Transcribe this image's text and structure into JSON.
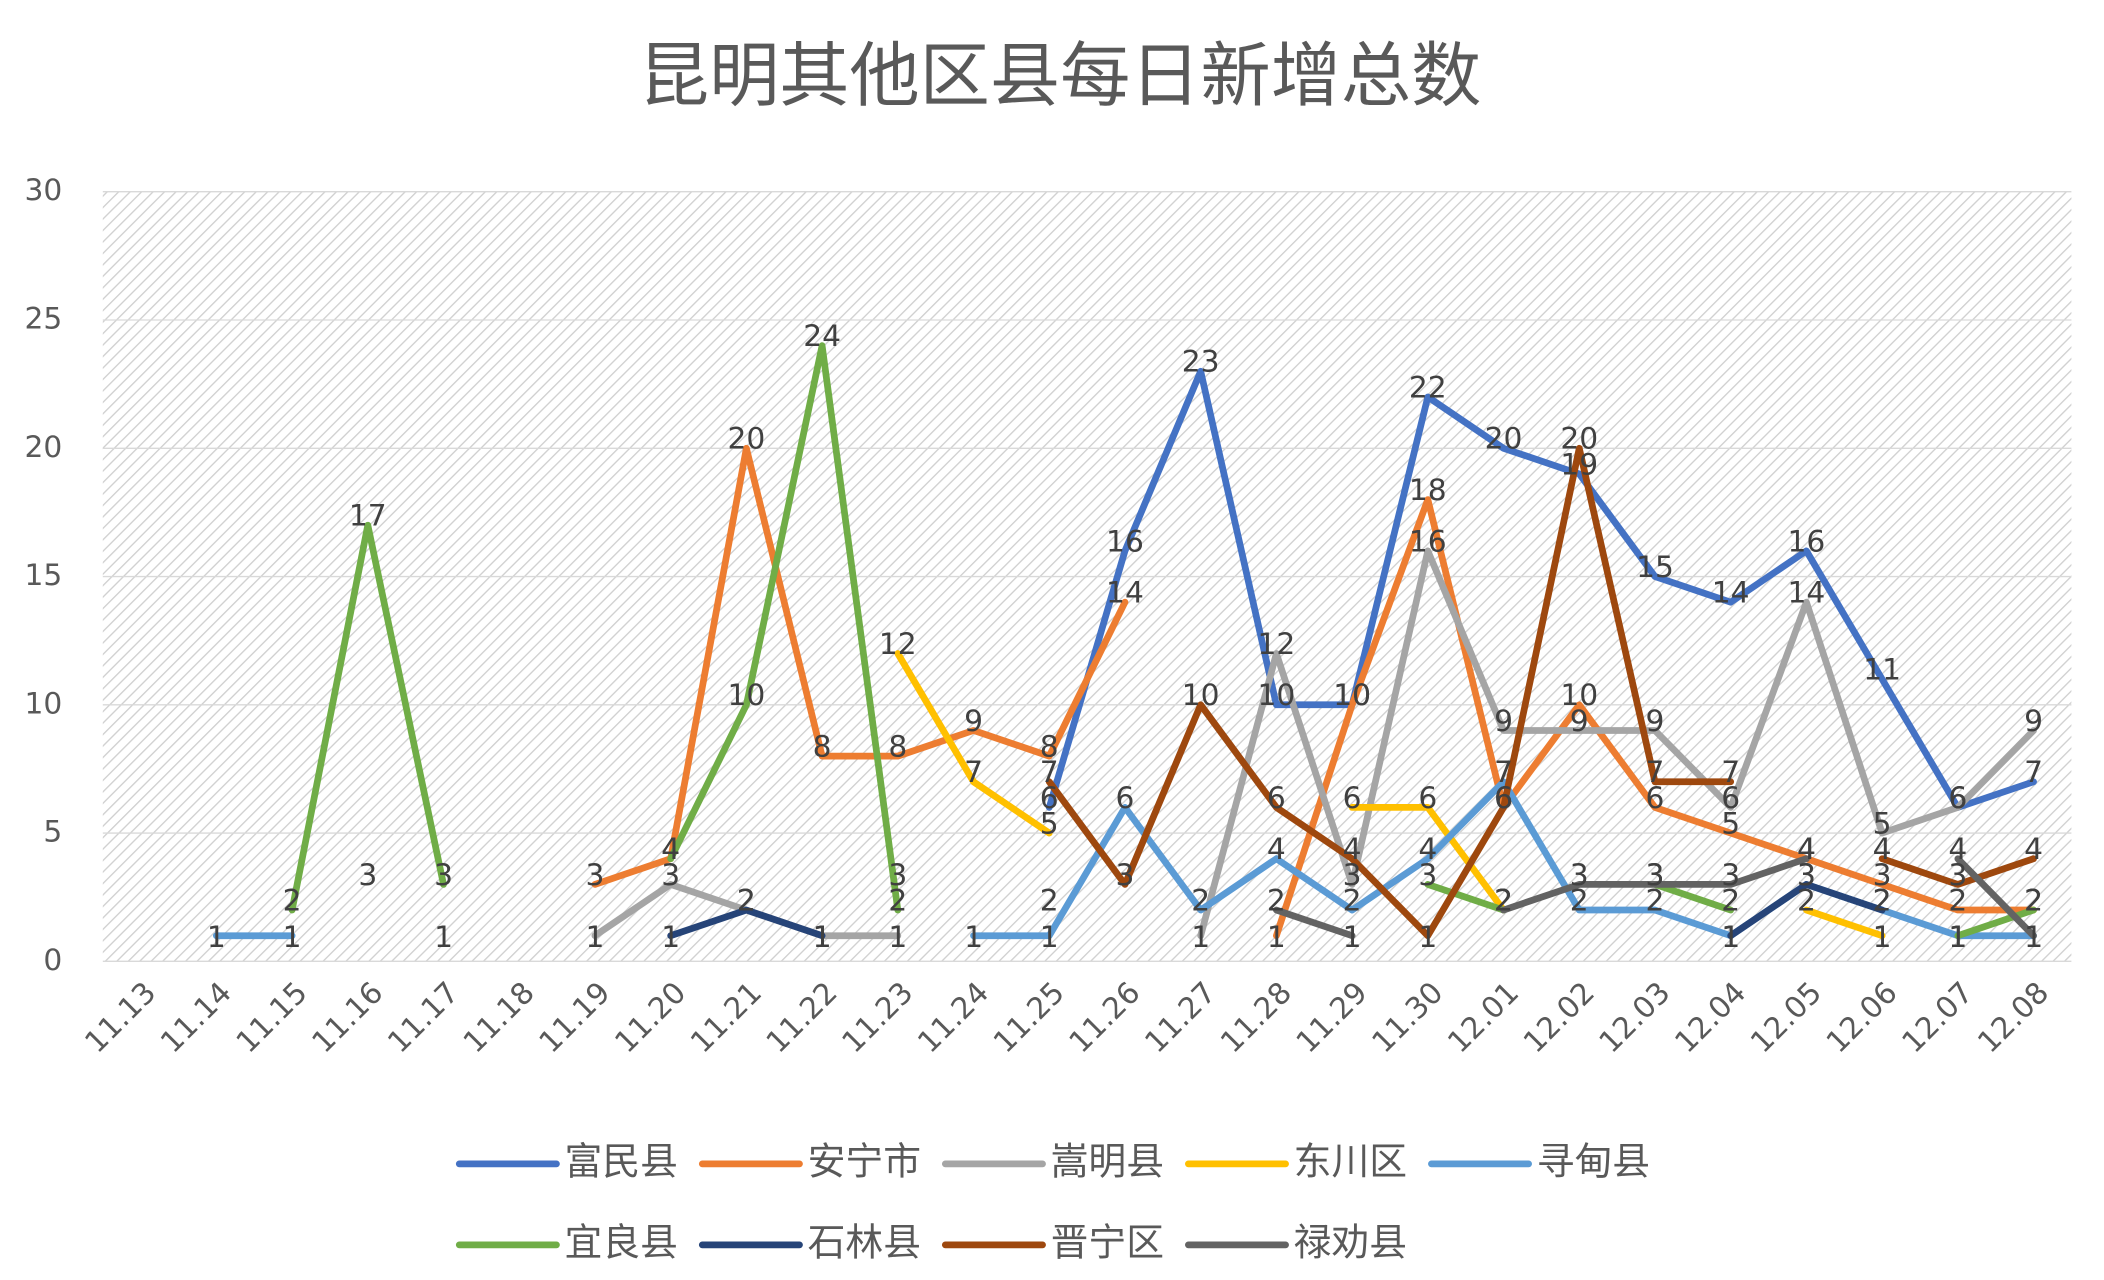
{
  "chart_data": {
    "type": "line",
    "title": "昆明其他区县每日新增总数",
    "categories": [
      "11.13",
      "11.14",
      "11.15",
      "11.16",
      "11.17",
      "11.18",
      "11.19",
      "11.20",
      "11.21",
      "11.22",
      "11.23",
      "11.24",
      "11.25",
      "11.26",
      "11.27",
      "11.28",
      "11.29",
      "11.30",
      "12.01",
      "12.02",
      "12.03",
      "12.04",
      "12.05",
      "12.06",
      "12.07",
      "12.08"
    ],
    "ylim": [
      0,
      30
    ],
    "yticks": [
      0,
      5,
      10,
      15,
      20,
      25,
      30
    ],
    "grid": true,
    "series": [
      {
        "name": "富民县",
        "color": "#4472c4",
        "values": [
          null,
          null,
          null,
          null,
          null,
          null,
          null,
          null,
          null,
          null,
          null,
          null,
          6,
          16,
          23,
          10,
          10,
          22,
          20,
          19,
          15,
          14,
          16,
          11,
          6,
          7
        ]
      },
      {
        "name": "安宁市",
        "color": "#ed7d31",
        "values": [
          null,
          null,
          null,
          3,
          null,
          null,
          3,
          4,
          20,
          8,
          8,
          9,
          8,
          14,
          null,
          1,
          10,
          18,
          6,
          10,
          6,
          5,
          4,
          3,
          2,
          2
        ]
      },
      {
        "name": "嵩明县",
        "color": "#a5a5a5",
        "values": [
          null,
          null,
          null,
          null,
          null,
          null,
          1,
          3,
          2,
          1,
          1,
          null,
          null,
          null,
          1,
          12,
          3,
          16,
          9,
          9,
          9,
          6,
          14,
          5,
          6,
          9
        ]
      },
      {
        "name": "东川区",
        "color": "#ffc000",
        "values": [
          null,
          null,
          null,
          null,
          null,
          null,
          null,
          null,
          null,
          null,
          12,
          7,
          5,
          null,
          null,
          null,
          6,
          6,
          2,
          null,
          null,
          null,
          2,
          1,
          null,
          null
        ]
      },
      {
        "name": "寻甸县",
        "color": "#5b9bd5",
        "values": [
          null,
          1,
          1,
          null,
          1,
          null,
          null,
          null,
          null,
          null,
          null,
          1,
          1,
          6,
          2,
          4,
          2,
          4,
          7,
          2,
          2,
          1,
          3,
          2,
          1,
          1
        ]
      },
      {
        "name": "宜良县",
        "color": "#70ad47",
        "values": [
          null,
          null,
          2,
          17,
          3,
          null,
          null,
          4,
          10,
          24,
          2,
          null,
          2,
          null,
          null,
          null,
          null,
          3,
          2,
          null,
          3,
          2,
          null,
          null,
          1,
          2
        ]
      },
      {
        "name": "石林县",
        "color": "#264478",
        "values": [
          null,
          null,
          null,
          null,
          null,
          null,
          null,
          1,
          2,
          1,
          null,
          null,
          null,
          null,
          null,
          null,
          null,
          null,
          null,
          null,
          null,
          1,
          3,
          2,
          null,
          null
        ]
      },
      {
        "name": "晋宁区",
        "color": "#9e480e",
        "values": [
          null,
          null,
          null,
          null,
          null,
          null,
          null,
          null,
          null,
          null,
          null,
          null,
          7,
          3,
          10,
          6,
          4,
          1,
          6,
          20,
          7,
          7,
          null,
          4,
          3,
          4
        ]
      },
      {
        "name": "禄劝县",
        "color": "#636363",
        "values": [
          null,
          null,
          null,
          null,
          null,
          null,
          null,
          null,
          null,
          null,
          3,
          null,
          null,
          null,
          null,
          2,
          1,
          null,
          2,
          3,
          3,
          3,
          4,
          null,
          4,
          1
        ]
      }
    ]
  }
}
